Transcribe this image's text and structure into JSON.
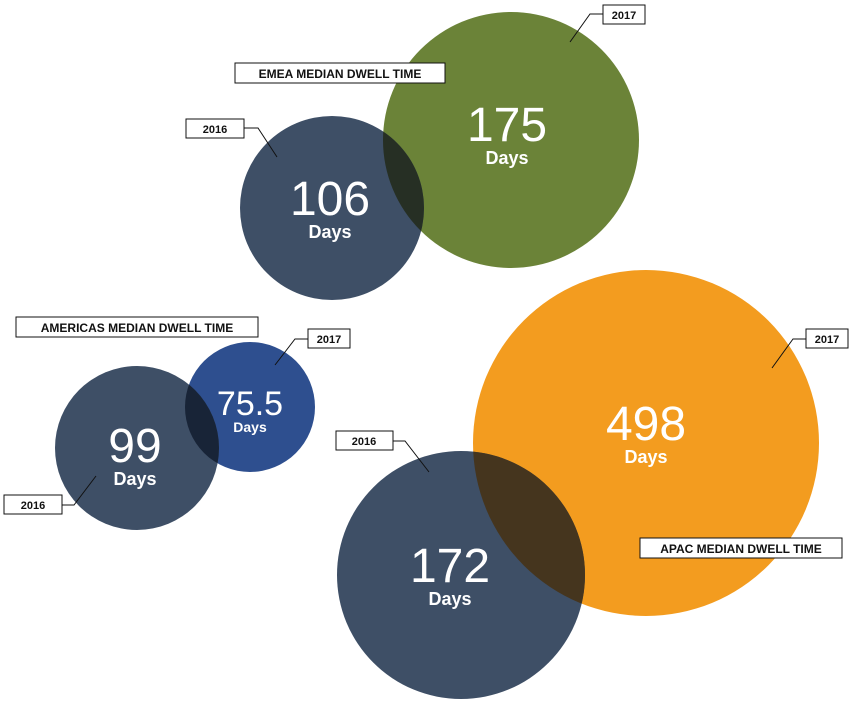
{
  "chart_data": {
    "type": "bubble",
    "unit_label": "Days",
    "colors": {
      "y2016": "#3e4f66",
      "emea_2017": "#6b8338",
      "americas_2017": "#2e4f8f",
      "apac_2017": "#f39c1f"
    },
    "regions": [
      {
        "title": "EMEA MEDIAN DWELL TIME",
        "bubbles": [
          {
            "year": "2016",
            "value": 106,
            "display": "106"
          },
          {
            "year": "2017",
            "value": 175,
            "display": "175"
          }
        ]
      },
      {
        "title": "AMERICAS MEDIAN DWELL TIME",
        "bubbles": [
          {
            "year": "2016",
            "value": 99,
            "display": "99"
          },
          {
            "year": "2017",
            "value": 75.5,
            "display": "75.5"
          }
        ]
      },
      {
        "title": "APAC MEDIAN DWELL TIME",
        "bubbles": [
          {
            "year": "2016",
            "value": 172,
            "display": "172"
          },
          {
            "year": "2017",
            "value": 498,
            "display": "498"
          }
        ]
      }
    ]
  }
}
